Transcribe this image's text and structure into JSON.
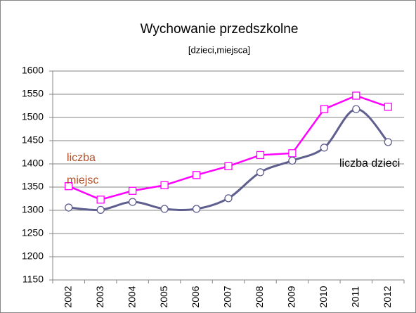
{
  "chart_data": {
    "type": "line",
    "title": "Wychowanie przedszkolne",
    "subtitle": "[dzieci,miejsca]",
    "categories": [
      "2002",
      "2003",
      "2004",
      "2005",
      "2006",
      "2007",
      "2008",
      "2009",
      "2010",
      "2011",
      "2012"
    ],
    "series": [
      {
        "name": "liczba miejsc",
        "color": "#ff00ff",
        "marker": "square",
        "values": [
          1352,
          1323,
          1342,
          1354,
          1376,
          1395,
          1419,
          1423,
          1518,
          1547,
          1523
        ]
      },
      {
        "name": "liczba dzieci",
        "color": "#5f5f8f",
        "marker": "circle",
        "values": [
          1306,
          1301,
          1318,
          1303,
          1303,
          1326,
          1382,
          1407,
          1435,
          1518,
          1447
        ]
      }
    ],
    "ylim": [
      1150,
      1600
    ],
    "yticks": [
      1150,
      1200,
      1250,
      1300,
      1350,
      1400,
      1450,
      1500,
      1550,
      1600
    ],
    "grid": true
  }
}
